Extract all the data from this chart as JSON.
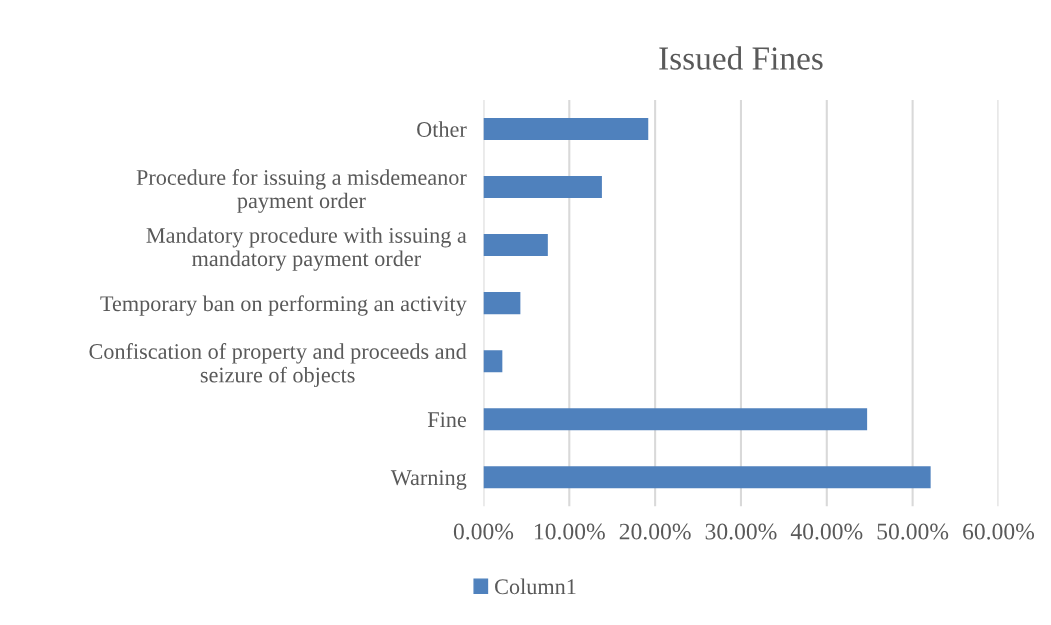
{
  "chart_data": {
    "type": "bar",
    "orientation": "horizontal",
    "title": "Issued Fines",
    "categories": [
      "Other",
      "Procedure for issuing a misdemeanor\npayment order",
      "Mandatory procedure with issuing a\nmandatory payment order",
      "Temporary ban on performing an activity",
      "Confiscation of property and proceeds and\nseizure of objects",
      "Fine",
      "Warning"
    ],
    "series": [
      {
        "name": "Column1",
        "color": "#4f81bd",
        "values": [
          19.2,
          13.8,
          7.5,
          4.3,
          2.2,
          44.7,
          52.1
        ]
      }
    ],
    "xlim": [
      0,
      60
    ],
    "xticks": [
      {
        "value": 0,
        "label": "0.00%"
      },
      {
        "value": 10,
        "label": "10.00%"
      },
      {
        "value": 20,
        "label": "20.00%"
      },
      {
        "value": 30,
        "label": "30.00%"
      },
      {
        "value": 40,
        "label": "40.00%"
      },
      {
        "value": 50,
        "label": "50.00%"
      },
      {
        "value": 60,
        "label": "60.00%"
      }
    ],
    "grid": "x",
    "legend": "bottom"
  }
}
